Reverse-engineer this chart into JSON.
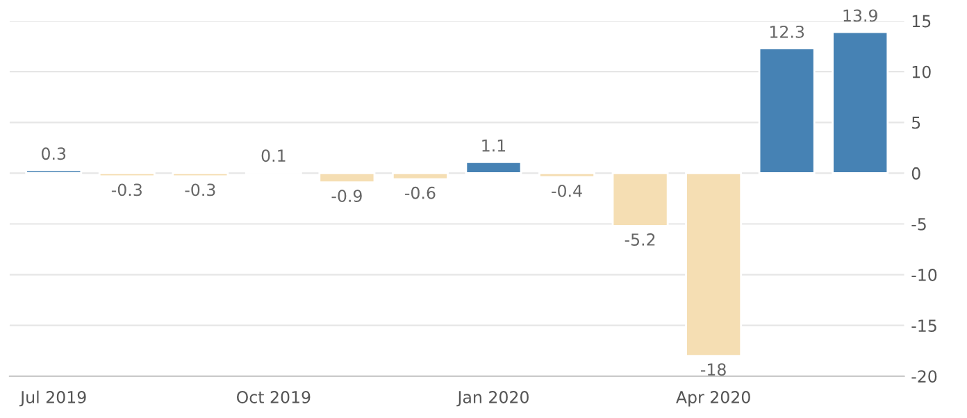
{
  "chart_data": {
    "type": "bar",
    "categories": [
      "Jul 2019",
      null,
      null,
      "Oct 2019",
      null,
      null,
      "Jan 2020",
      null,
      null,
      "Apr 2020",
      null,
      null
    ],
    "values": [
      0.3,
      -0.3,
      -0.3,
      0.1,
      -0.9,
      -0.6,
      1.1,
      -0.4,
      -5.2,
      -18,
      12.3,
      13.9
    ],
    "colors": [
      "#4682b4",
      "#f5deb3",
      "#f5deb3",
      "#4682b4",
      "#f5deb3",
      "#f5deb3",
      "#4682b4",
      "#f5deb3",
      "#f5deb3",
      "#f5deb3",
      "#4682b4",
      "#4682b4"
    ],
    "ylim": [
      -20,
      15
    ],
    "yticks": [
      -20,
      -15,
      -10,
      -5,
      0,
      5,
      10,
      15
    ],
    "grid": "y",
    "data_labels": true
  }
}
